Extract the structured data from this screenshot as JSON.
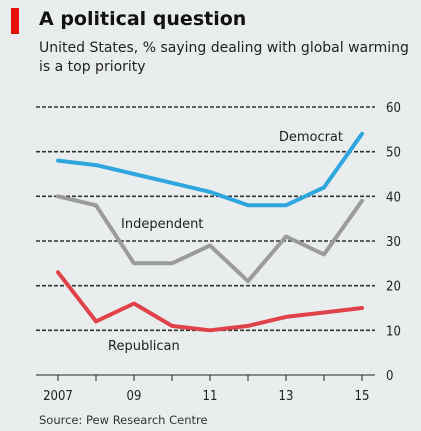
{
  "header": {
    "title": "A political question",
    "subtitle": "United States, % saying dealing with global warming is a top priority"
  },
  "footer": {
    "source": "Source: Pew Research Centre"
  },
  "colors": {
    "accent": "#e3120b",
    "background": "#e9edee",
    "democrat": "#2fa6dd",
    "independent": "#9b9b9b",
    "republican": "#e0424a"
  },
  "chart_data": {
    "type": "line",
    "x": [
      2007,
      2008,
      2009,
      2010,
      2011,
      2012,
      2013,
      2014,
      2015
    ],
    "xticks": [
      "2007",
      "09",
      "11",
      "13",
      "15"
    ],
    "xtick_values": [
      2007,
      2009,
      2011,
      2013,
      2015
    ],
    "yticks": [
      0,
      10,
      20,
      30,
      40,
      50,
      60
    ],
    "ylim": [
      0,
      60
    ],
    "y_axis_side": "right",
    "grid": "dashed horizontal",
    "series": [
      {
        "name": "Democrat",
        "values": [
          48,
          47,
          45,
          43,
          41,
          38,
          38,
          42,
          54
        ],
        "color": "#2fa6dd"
      },
      {
        "name": "Independent",
        "values": [
          40,
          38,
          25,
          25,
          29,
          21,
          31,
          27,
          39
        ],
        "color": "#9b9b9b"
      },
      {
        "name": "Republican",
        "values": [
          23,
          12,
          16,
          11,
          10,
          11,
          13,
          14,
          15
        ],
        "color": "#e0424a"
      }
    ]
  }
}
